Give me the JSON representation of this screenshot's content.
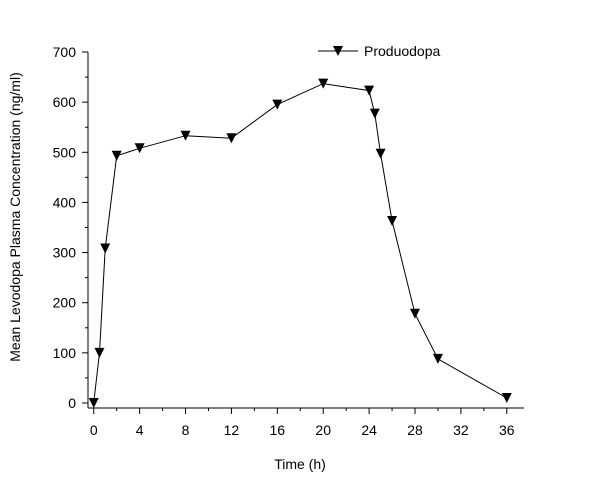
{
  "chart_data": {
    "type": "line",
    "xlabel": "Time (h)",
    "ylabel": "Mean Levodopa Plasma Concentration (ng/ml)",
    "xlim": [
      -0.5,
      37.5
    ],
    "ylim": [
      -10,
      700
    ],
    "xticks": [
      0,
      4,
      8,
      12,
      16,
      20,
      24,
      28,
      32,
      36
    ],
    "yticks": [
      0,
      100,
      200,
      300,
      400,
      500,
      600,
      700
    ],
    "grid": false,
    "legend_position": "top-right",
    "marker": "down-triangle",
    "series": [
      {
        "name": "Produodopa",
        "color": "#000000",
        "x": [
          0,
          0.5,
          1,
          2,
          4,
          8,
          12,
          16,
          20,
          24,
          24.5,
          25,
          26,
          28,
          30,
          36
        ],
        "y": [
          0,
          100,
          308,
          493,
          508,
          533,
          528,
          595,
          637,
          623,
          577,
          497,
          363,
          178,
          88,
          10
        ]
      }
    ]
  }
}
